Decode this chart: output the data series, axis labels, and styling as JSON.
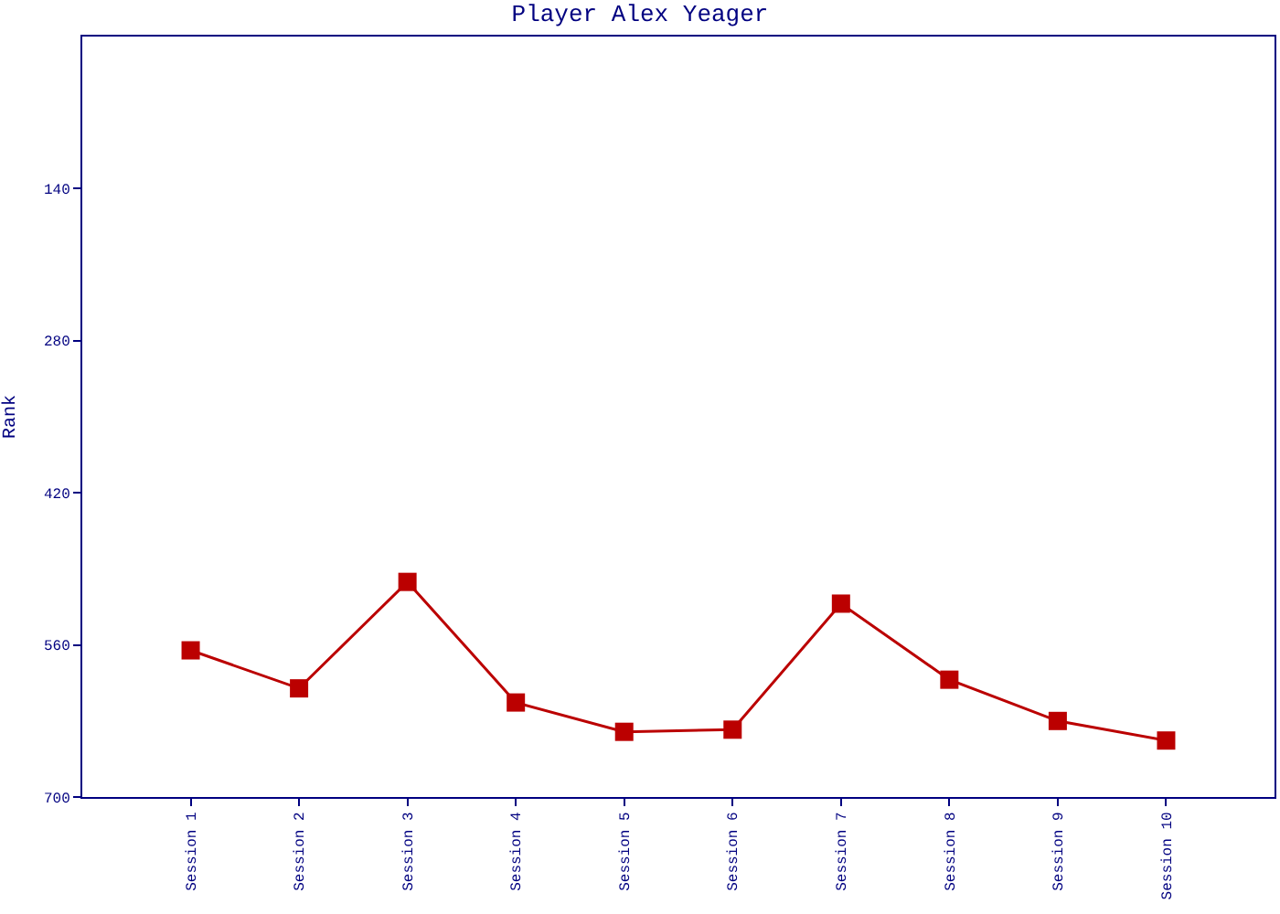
{
  "chart_data": {
    "type": "line",
    "title": "Player Alex Yeager",
    "ylabel": "Rank",
    "categories": [
      "Session 1",
      "Session 2",
      "Session 3",
      "Session 4",
      "Session 5",
      "Session 6",
      "Session 7",
      "Session 8",
      "Session 9",
      "Session 10"
    ],
    "series": [
      {
        "color": "#bb0000",
        "values": [
          565,
          600,
          502,
          613,
          640,
          638,
          522,
          592,
          630,
          648
        ]
      }
    ],
    "ylim": [
      700,
      0
    ],
    "yticks": [
      140,
      280,
      420,
      560,
      700
    ],
    "legend": false,
    "marker": "square",
    "line_style": "solid"
  }
}
